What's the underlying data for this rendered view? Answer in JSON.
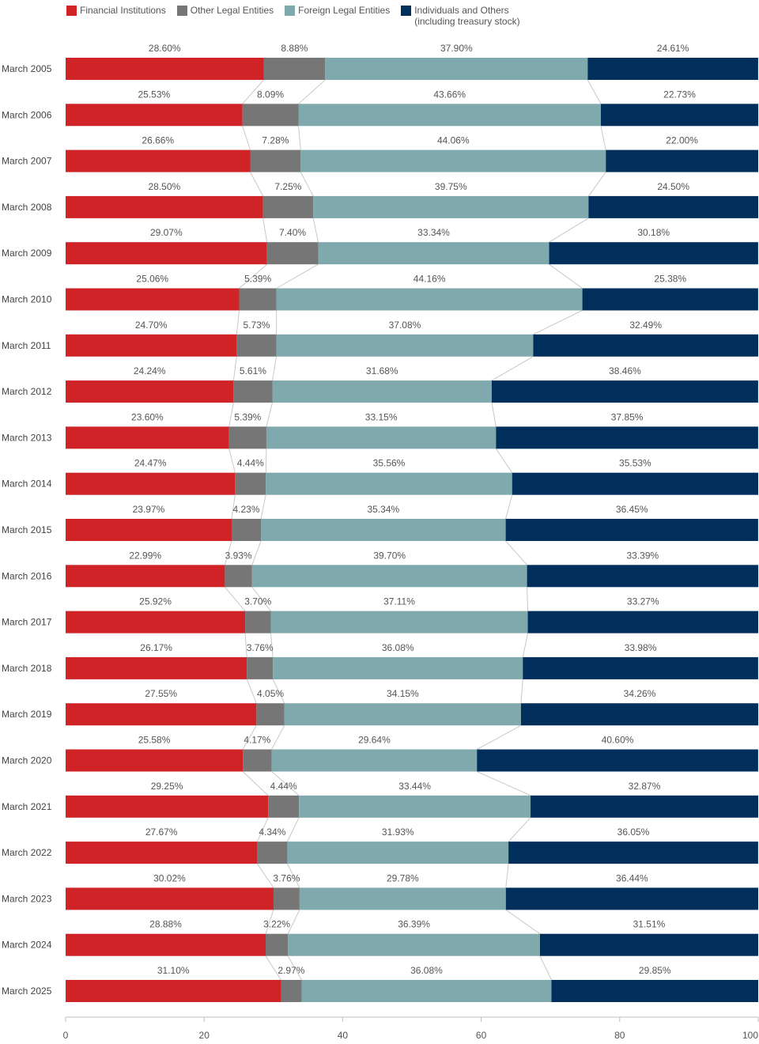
{
  "chart_data": {
    "type": "bar",
    "orientation": "horizontal",
    "stacked": true,
    "categories": [
      "March 2005",
      "March 2006",
      "March 2007",
      "March 2008",
      "March 2009",
      "March 2010",
      "March 2011",
      "March 2012",
      "March 2013",
      "March 2014",
      "March 2015",
      "March 2016",
      "March 2017",
      "March 2018",
      "March 2019",
      "March 2020",
      "March 2021",
      "March 2022",
      "March 2023",
      "March 2024",
      "March 2025"
    ],
    "series": [
      {
        "name": "Financial Institutions",
        "color": "#d02327",
        "values": [
          28.6,
          25.53,
          26.66,
          28.5,
          29.07,
          25.06,
          24.7,
          24.24,
          23.6,
          24.47,
          23.97,
          22.99,
          25.92,
          26.17,
          27.55,
          25.58,
          29.25,
          27.67,
          30.02,
          28.88,
          31.1
        ]
      },
      {
        "name": "Other Legal Entities",
        "color": "#767676",
        "values": [
          8.88,
          8.09,
          7.28,
          7.25,
          7.4,
          5.39,
          5.73,
          5.61,
          5.39,
          4.44,
          4.23,
          3.93,
          3.7,
          3.76,
          4.05,
          4.17,
          4.44,
          4.34,
          3.76,
          3.22,
          2.97
        ]
      },
      {
        "name": "Foreign Legal Entities",
        "color": "#80a9ad",
        "values": [
          37.9,
          43.66,
          44.06,
          39.75,
          33.34,
          44.16,
          37.08,
          31.68,
          33.15,
          35.56,
          35.34,
          39.7,
          37.11,
          36.08,
          34.15,
          29.64,
          33.44,
          31.93,
          29.78,
          36.39,
          36.08
        ]
      },
      {
        "name": "Individuals and Others\n(including treasury stock)",
        "color": "#002f5c",
        "values": [
          24.61,
          22.73,
          22.0,
          24.5,
          30.18,
          25.38,
          32.49,
          38.46,
          37.85,
          35.53,
          36.45,
          33.39,
          33.27,
          33.98,
          34.26,
          40.6,
          32.87,
          36.05,
          36.44,
          31.51,
          29.85
        ]
      }
    ],
    "xlim": [
      0,
      100
    ],
    "xticks": [
      0,
      20,
      40,
      60,
      80,
      100
    ],
    "data_labels": "percent with two decimals",
    "legend": "top-left",
    "grid": false,
    "connector_lines": true,
    "title": "",
    "xlabel": "",
    "ylabel": ""
  }
}
